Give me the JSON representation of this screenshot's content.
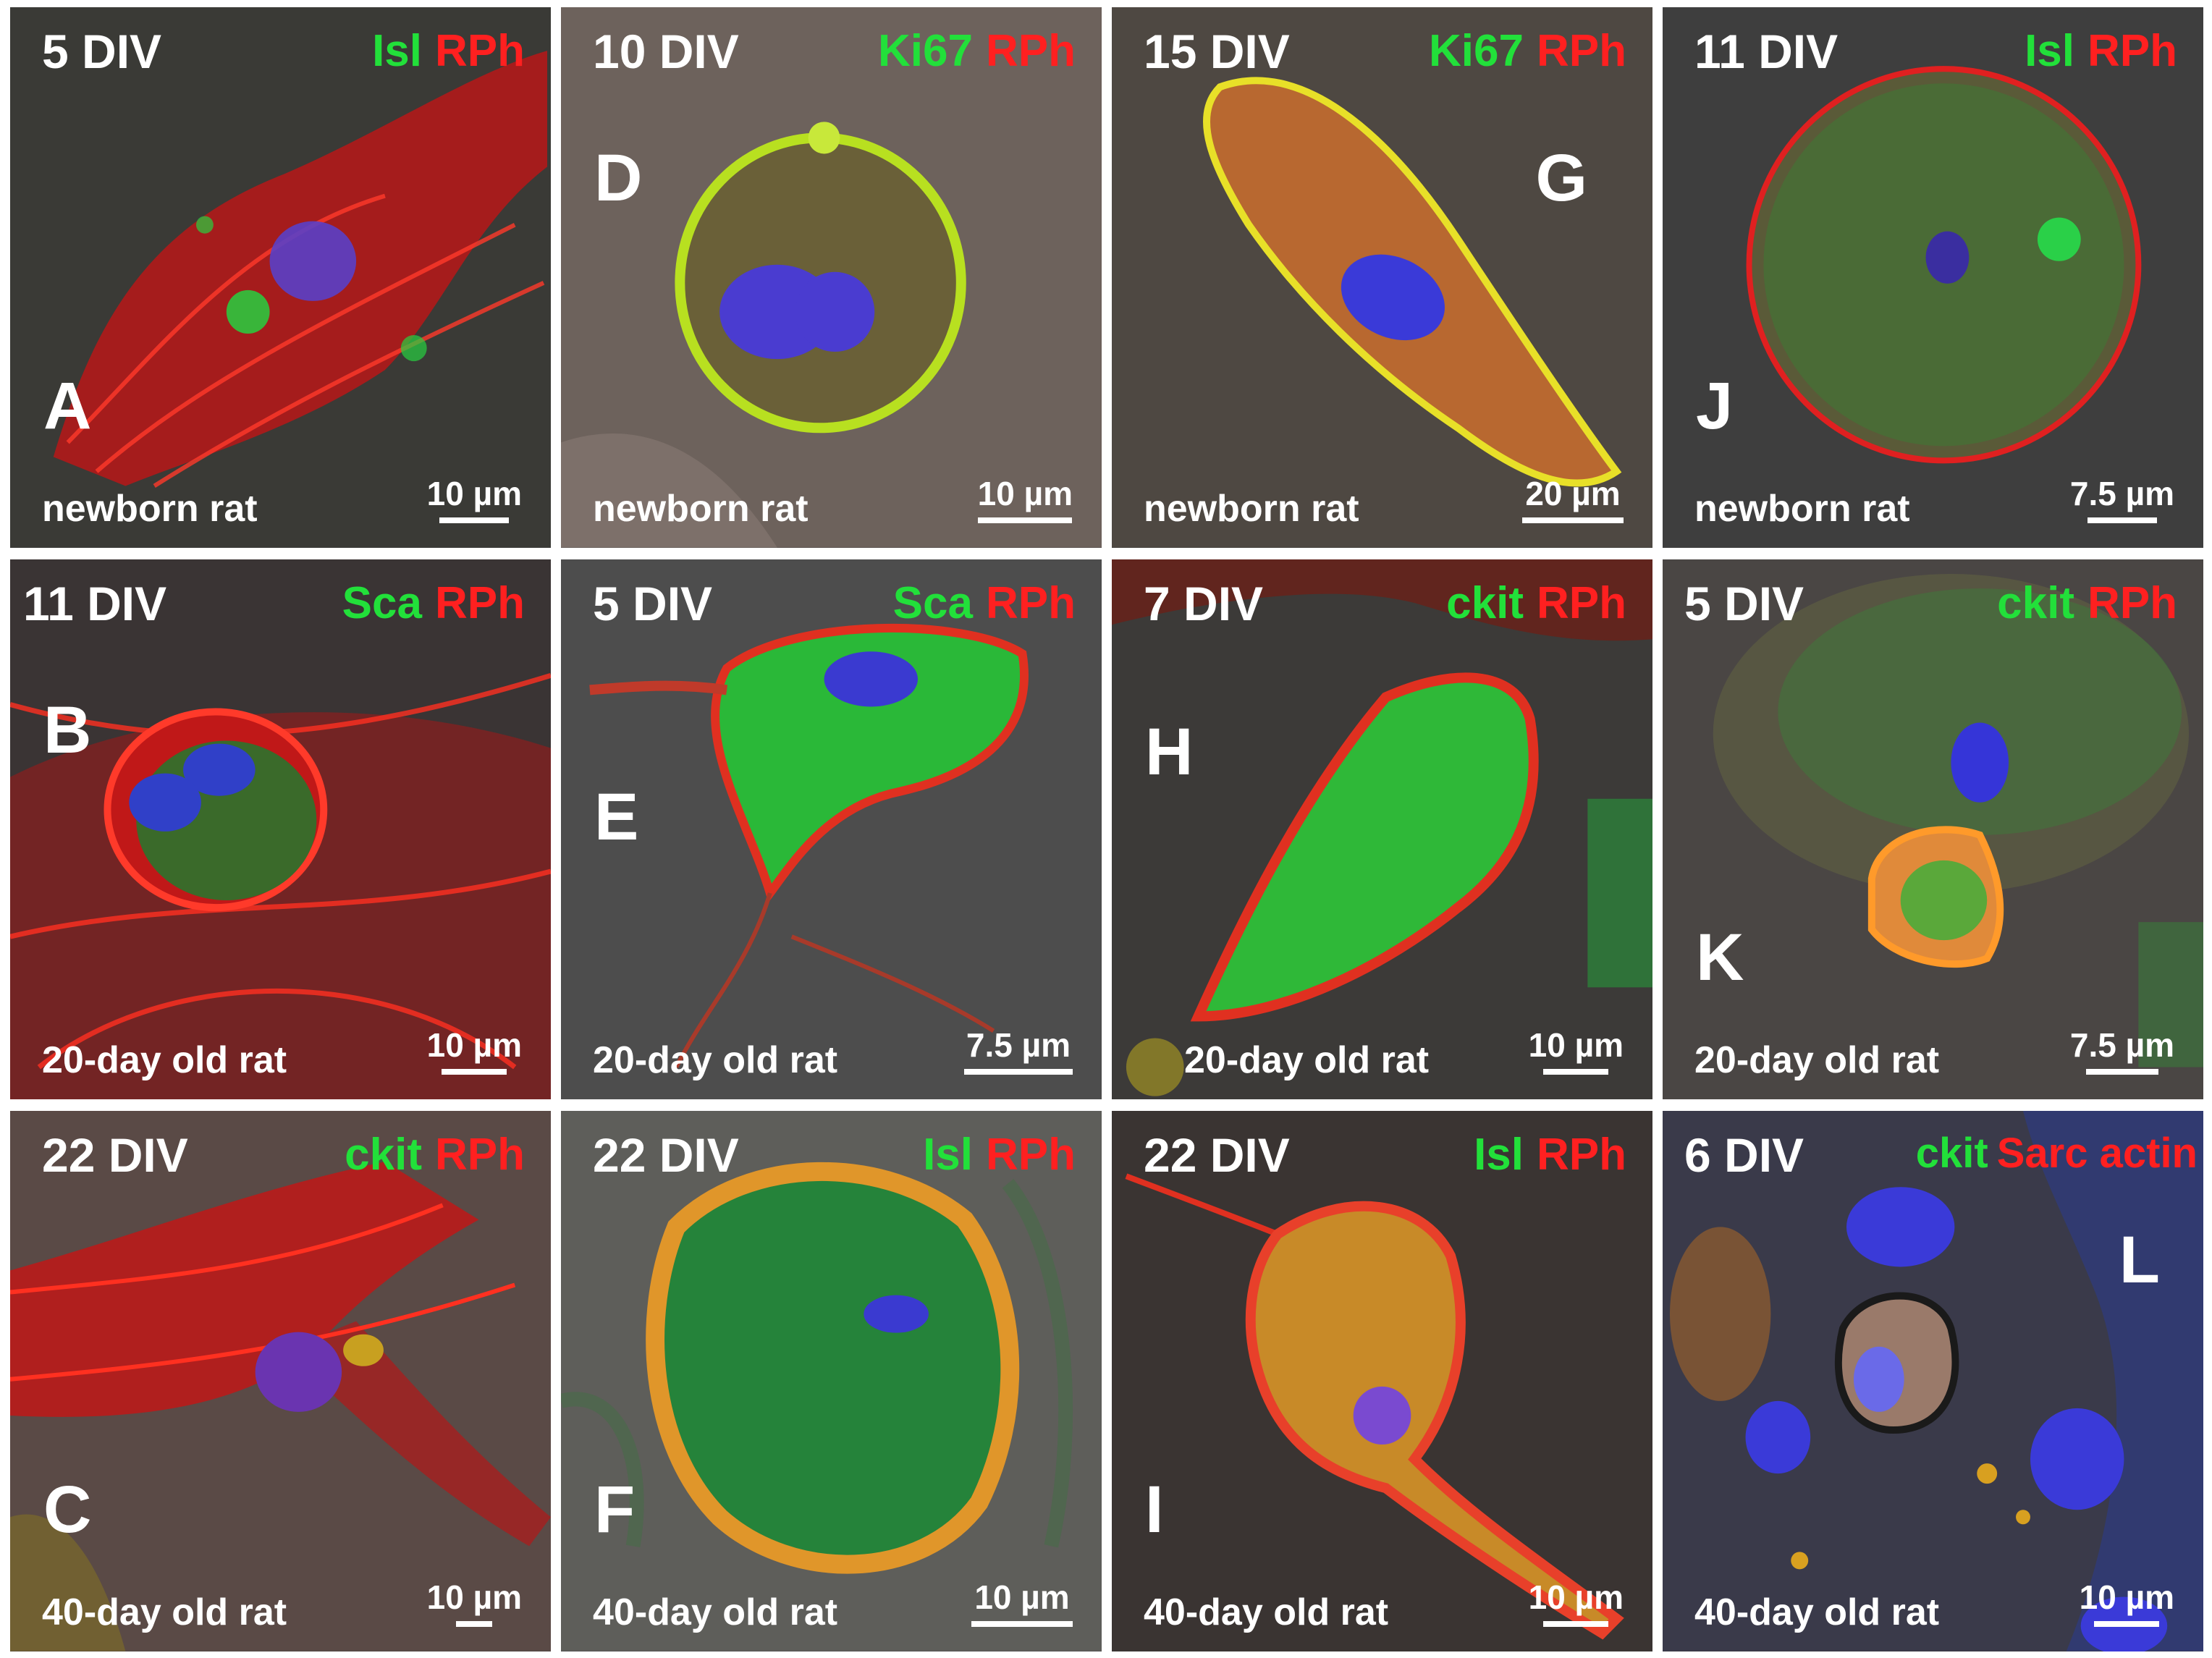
{
  "panels": [
    {
      "letter": "A",
      "div": "5 DIV",
      "marker_green": "Isl",
      "marker_red": "RPh",
      "animal": "newborn rat",
      "scale": "10 µm"
    },
    {
      "letter": "D",
      "div": "10 DIV",
      "marker_green": "Ki67",
      "marker_red": "RPh",
      "animal": "newborn rat",
      "scale": "10 µm"
    },
    {
      "letter": "G",
      "div": "15 DIV",
      "marker_green": "Ki67",
      "marker_red": "RPh",
      "animal": "newborn rat",
      "scale": "20 µm"
    },
    {
      "letter": "J",
      "div": "11 DIV",
      "marker_green": "Isl",
      "marker_red": "RPh",
      "animal": "newborn rat",
      "scale": "7.5 µm"
    },
    {
      "letter": "B",
      "div": "11 DIV",
      "marker_green": "Sca",
      "marker_red": "RPh",
      "animal": "20-day old rat",
      "scale": "10 µm"
    },
    {
      "letter": "E",
      "div": "5 DIV",
      "marker_green": "Sca",
      "marker_red": "RPh",
      "animal": "20-day old rat",
      "scale": "7.5 µm"
    },
    {
      "letter": "H",
      "div": "7 DIV",
      "marker_green": "ckit",
      "marker_red": "RPh",
      "animal": "20-day old rat",
      "scale": "10 µm"
    },
    {
      "letter": "K",
      "div": "5 DIV",
      "marker_green": "ckit",
      "marker_red": "RPh",
      "animal": "20-day old rat",
      "scale": "7.5 µm"
    },
    {
      "letter": "C",
      "div": "22 DIV",
      "marker_green": "ckit",
      "marker_red": "RPh",
      "animal": "40-day old rat",
      "scale": "10 µm"
    },
    {
      "letter": "F",
      "div": "22 DIV",
      "marker_green": "Isl",
      "marker_red": "RPh",
      "animal": "40-day old rat",
      "scale": "10 µm"
    },
    {
      "letter": "I",
      "div": "22 DIV",
      "marker_green": "Isl",
      "marker_red": "RPh",
      "animal": "40-day old rat",
      "scale": "10 µm"
    },
    {
      "letter": "L",
      "div": "6 DIV",
      "marker_green": "ckit",
      "marker_red": "Sarc actin",
      "animal": "40-day old rat",
      "scale": "10 µm"
    }
  ],
  "colors": {
    "marker_green": "#22e03a",
    "marker_red": "#ff2020",
    "nucleus": "#4b3cd8",
    "membrane": "#ff2a1a"
  }
}
